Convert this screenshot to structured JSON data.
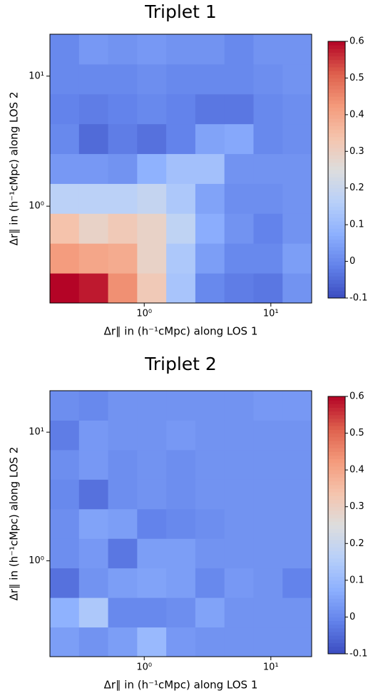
{
  "chart_data": [
    {
      "type": "heatmap",
      "title": "Triplet 1",
      "xlabel": "Δr∥ in (h⁻¹cMpc) along LOS 1",
      "ylabel": "Δr∥ in (h⁻¹cMpc) along LOS 2",
      "xscale": "log",
      "yscale": "log",
      "xlim": [
        0.18,
        21
      ],
      "ylim": [
        0.18,
        21
      ],
      "xticks": [
        {
          "value": 1,
          "label": "10⁰"
        },
        {
          "value": 10,
          "label": "10¹"
        }
      ],
      "yticks": [
        {
          "value": 1,
          "label": "10⁰"
        },
        {
          "value": 10,
          "label": "10¹"
        }
      ],
      "colormap": "coolwarm",
      "clim": [
        -0.1,
        0.6
      ],
      "cticks": [
        -0.1,
        0.0,
        0.1,
        0.2,
        0.3,
        0.4,
        0.5,
        0.6
      ],
      "values": [
        [
          0.6,
          0.58,
          0.44,
          0.32,
          0.13,
          0.0,
          -0.02,
          -0.03,
          0.02
        ],
        [
          0.42,
          0.4,
          0.39,
          0.29,
          0.14,
          0.04,
          0.0,
          0.0,
          0.04
        ],
        [
          0.34,
          0.29,
          0.32,
          0.29,
          0.18,
          0.07,
          0.02,
          -0.01,
          0.02
        ],
        [
          0.17,
          0.17,
          0.17,
          0.19,
          0.14,
          0.05,
          0.01,
          0.01,
          0.02
        ],
        [
          0.03,
          0.03,
          0.02,
          0.08,
          0.12,
          0.12,
          0.02,
          0.02,
          0.02
        ],
        [
          0.0,
          -0.05,
          -0.02,
          -0.04,
          -0.01,
          0.05,
          0.06,
          0.0,
          0.01
        ],
        [
          -0.01,
          -0.02,
          -0.01,
          0.0,
          -0.01,
          -0.03,
          -0.03,
          0.0,
          0.01
        ],
        [
          0.0,
          0.0,
          0.0,
          0.01,
          0.0,
          0.0,
          0.0,
          0.01,
          0.02
        ],
        [
          0.0,
          0.03,
          0.02,
          0.03,
          0.02,
          0.02,
          0.0,
          0.02,
          0.02
        ]
      ]
    },
    {
      "type": "heatmap",
      "title": "Triplet 2",
      "xlabel": "Δr∥ in (h⁻¹cMpc) along LOS 1",
      "ylabel": "Δr∥ in (h⁻¹cMpc) along LOS 2",
      "xscale": "log",
      "yscale": "log",
      "xlim": [
        0.18,
        21
      ],
      "ylim": [
        0.18,
        21
      ],
      "xticks": [
        {
          "value": 1,
          "label": "10⁰"
        },
        {
          "value": 10,
          "label": "10¹"
        }
      ],
      "yticks": [
        {
          "value": 1,
          "label": "10⁰"
        },
        {
          "value": 10,
          "label": "10¹"
        }
      ],
      "colormap": "coolwarm",
      "clim": [
        -0.1,
        0.6
      ],
      "cticks": [
        -0.1,
        0.0,
        0.1,
        0.2,
        0.3,
        0.4,
        0.5,
        0.6
      ],
      "values": [
        [
          0.04,
          0.02,
          0.04,
          0.1,
          0.03,
          0.02,
          0.02,
          0.02,
          0.02
        ],
        [
          0.08,
          0.14,
          0.0,
          0.0,
          0.01,
          0.05,
          0.02,
          0.02,
          0.02
        ],
        [
          -0.04,
          0.02,
          0.04,
          0.05,
          0.04,
          0.0,
          0.03,
          0.02,
          -0.01
        ],
        [
          0.01,
          0.03,
          -0.03,
          0.04,
          0.04,
          0.02,
          0.02,
          0.02,
          0.02
        ],
        [
          0.01,
          0.05,
          0.04,
          -0.01,
          0.0,
          0.01,
          0.02,
          0.02,
          0.02
        ],
        [
          0.0,
          -0.04,
          0.01,
          0.02,
          0.01,
          0.02,
          0.02,
          0.02,
          0.02
        ],
        [
          0.01,
          0.03,
          0.01,
          0.02,
          0.01,
          0.02,
          0.02,
          0.02,
          0.02
        ],
        [
          -0.02,
          0.03,
          0.02,
          0.02,
          0.03,
          0.02,
          0.02,
          0.02,
          0.02
        ],
        [
          0.01,
          0.0,
          0.02,
          0.02,
          0.02,
          0.02,
          0.02,
          0.03,
          0.03
        ]
      ]
    }
  ]
}
